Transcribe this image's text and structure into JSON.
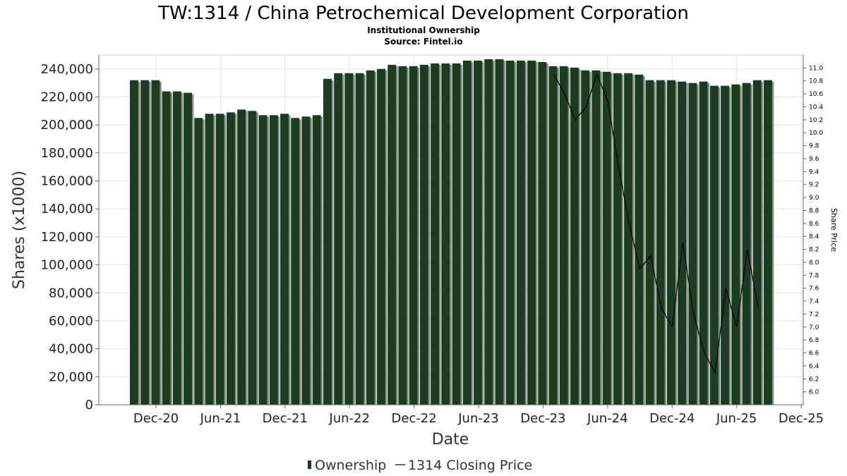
{
  "chart_data": {
    "type": "bar",
    "title": "TW:1314 / China Petrochemical Development Corporation",
    "subtitle": "Institutional Ownership",
    "source": "Source: Fintel.io",
    "xlabel": "Date",
    "ylabel": "Shares (x1000)",
    "y2label": "Share Price",
    "ylim": [
      0,
      250000
    ],
    "y2lim": [
      5.8,
      11.2
    ],
    "yticks": [
      "0",
      "20,000",
      "40,000",
      "60,000",
      "80,000",
      "100,000",
      "120,000",
      "140,000",
      "160,000",
      "180,000",
      "200,000",
      "220,000",
      "240,000"
    ],
    "y2ticks": [
      "6.0",
      "6.2",
      "6.4",
      "6.6",
      "6.8",
      "7.0",
      "7.2",
      "7.4",
      "7.6",
      "7.8",
      "8.0",
      "8.2",
      "8.4",
      "8.6",
      "8.8",
      "9.0",
      "9.2",
      "9.4",
      "9.6",
      "9.8",
      "10.0",
      "10.2",
      "10.4",
      "10.6",
      "10.8",
      "11.0"
    ],
    "xticks": [
      "Dec-20",
      "Jun-21",
      "Dec-21",
      "Jun-22",
      "Dec-22",
      "Jun-23",
      "Dec-23",
      "Jun-24",
      "Dec-24",
      "Jun-25",
      "Dec-25"
    ],
    "grid": true,
    "legend_position": "bottom",
    "colors": {
      "bar": "#1a3d1f",
      "bar_shadow": "#8c8c8c",
      "line": "#000000"
    },
    "series": [
      {
        "name": "Ownership",
        "type": "bar",
        "values": [
          232000,
          232000,
          232000,
          224000,
          224000,
          223000,
          205000,
          208000,
          208000,
          209000,
          211000,
          210000,
          207000,
          207000,
          208000,
          205000,
          206000,
          207000,
          233000,
          237000,
          237000,
          237000,
          239000,
          240000,
          243000,
          242000,
          242000,
          243000,
          244000,
          244000,
          244000,
          246000,
          246000,
          247000,
          247000,
          246000,
          246000,
          246000,
          245000,
          242000,
          242000,
          241000,
          239000,
          239000,
          238000,
          237000,
          237000,
          236000,
          232000,
          232000,
          232000,
          231000,
          230000,
          231000,
          228000,
          228000,
          229000,
          230000,
          232000,
          232000
        ]
      },
      {
        "name": "1314 Closing Price",
        "type": "line",
        "x": [
          "Jan-24",
          "Feb-24",
          "Mar-24",
          "Apr-24",
          "May-24",
          "Jun-24",
          "Jul-24",
          "Aug-24",
          "Sep-24",
          "Oct-24",
          "Nov-24",
          "Dec-24",
          "Jan-25",
          "Feb-25",
          "Mar-25",
          "Apr-25",
          "May-25",
          "Jun-25",
          "Jul-25",
          "Aug-25"
        ],
        "values": [
          10.9,
          10.6,
          10.2,
          10.4,
          10.9,
          10.5,
          9.5,
          8.6,
          7.9,
          8.1,
          7.3,
          7.0,
          8.3,
          7.2,
          6.6,
          6.3,
          7.6,
          7.0,
          8.2,
          7.3
        ]
      }
    ]
  }
}
